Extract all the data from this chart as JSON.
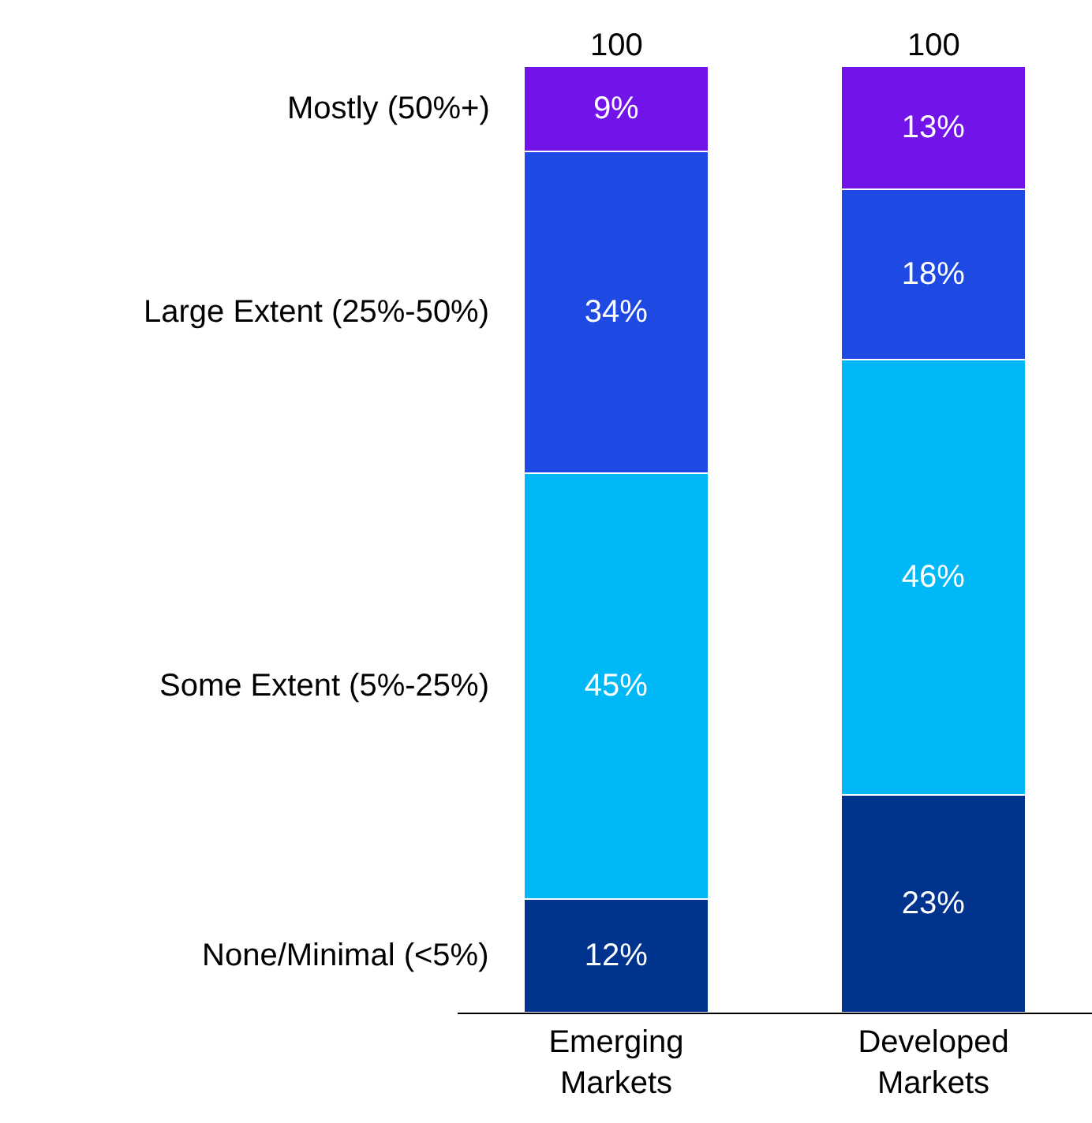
{
  "chart_data": {
    "type": "bar",
    "stacked": true,
    "categories": [
      "Emerging\nMarkets",
      "Developed\nMarkets"
    ],
    "series": [
      {
        "name": "None/Minimal (<5%)",
        "color": "#00338d",
        "values": [
          12,
          23
        ],
        "value_labels": [
          "12%",
          "23%"
        ]
      },
      {
        "name": "Some Extent (5%-25%)",
        "color": "#00b8f5",
        "values": [
          45,
          46
        ],
        "value_labels": [
          "45%",
          "46%"
        ]
      },
      {
        "name": "Large Extent (25%-50%)",
        "color": "#1e49e2",
        "values": [
          34,
          18
        ],
        "value_labels": [
          "34%",
          "18%"
        ]
      },
      {
        "name": "Mostly (50%+)",
        "color": "#7213ea",
        "values": [
          9,
          13
        ],
        "value_labels": [
          "9%",
          "13%"
        ]
      }
    ],
    "totals": [
      "100",
      "100"
    ],
    "legend": false
  }
}
